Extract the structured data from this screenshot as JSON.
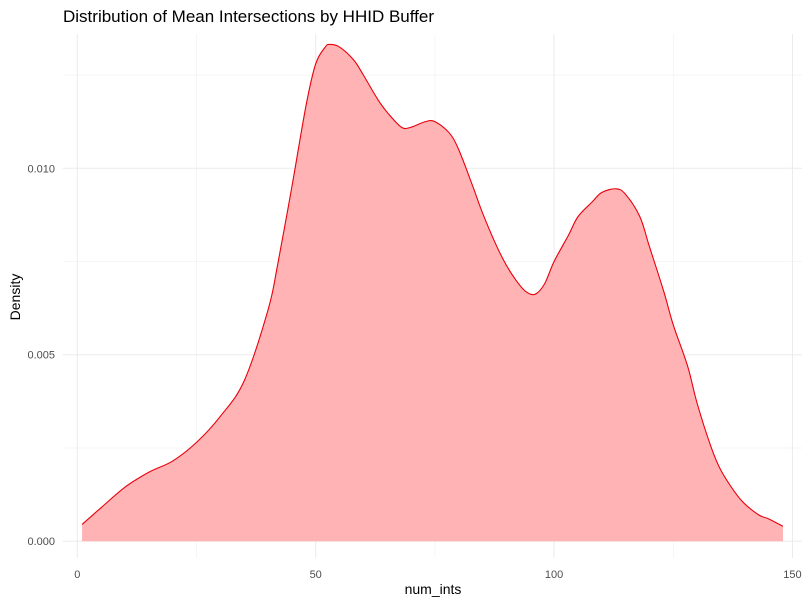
{
  "chart_data": {
    "type": "area",
    "title": "Distribution of Mean Intersections by HHID Buffer",
    "xlabel": "num_ints",
    "ylabel": "Density",
    "xlim": [
      -3,
      152
    ],
    "ylim": [
      -0.00045,
      0.0136
    ],
    "x_ticks": [
      0,
      50,
      100,
      150
    ],
    "x_tick_labels": [
      "0",
      "50",
      "100",
      "150"
    ],
    "x_minor": [
      25,
      75,
      125
    ],
    "y_ticks": [
      0.0,
      0.005,
      0.01
    ],
    "y_tick_labels": [
      "0.000",
      "0.005",
      "0.010"
    ],
    "y_minor": [
      0.0025,
      0.0075,
      0.0125
    ],
    "grid": true,
    "legend": "none",
    "fill_color": "#ffb3b5",
    "line_color": "#e8000b",
    "series": [
      {
        "x": [
          1,
          5,
          10,
          15,
          20,
          25,
          30,
          35,
          40,
          42,
          45,
          48,
          50,
          52,
          53,
          55,
          58,
          60,
          63,
          65,
          68,
          70,
          73,
          75,
          78,
          80,
          83,
          85,
          88,
          90,
          92,
          94,
          96,
          98,
          100,
          103,
          105,
          108,
          110,
          113,
          115,
          118,
          120,
          123,
          125,
          128,
          130,
          133,
          135,
          138,
          140,
          143,
          145,
          148
        ],
        "y": [
          0.00045,
          0.0009,
          0.00145,
          0.00185,
          0.00215,
          0.00265,
          0.00335,
          0.0043,
          0.0062,
          0.0074,
          0.0095,
          0.0117,
          0.0128,
          0.01325,
          0.01332,
          0.01325,
          0.0129,
          0.0125,
          0.01185,
          0.0115,
          0.0111,
          0.0111,
          0.01125,
          0.01125,
          0.01095,
          0.0105,
          0.0095,
          0.0088,
          0.0079,
          0.0074,
          0.007,
          0.0067,
          0.00662,
          0.0069,
          0.0075,
          0.0082,
          0.0087,
          0.0091,
          0.00935,
          0.00945,
          0.0093,
          0.0087,
          0.0079,
          0.0067,
          0.0058,
          0.0047,
          0.0037,
          0.0025,
          0.0019,
          0.0013,
          0.001,
          0.0007,
          0.0006,
          0.0004
        ]
      }
    ]
  }
}
